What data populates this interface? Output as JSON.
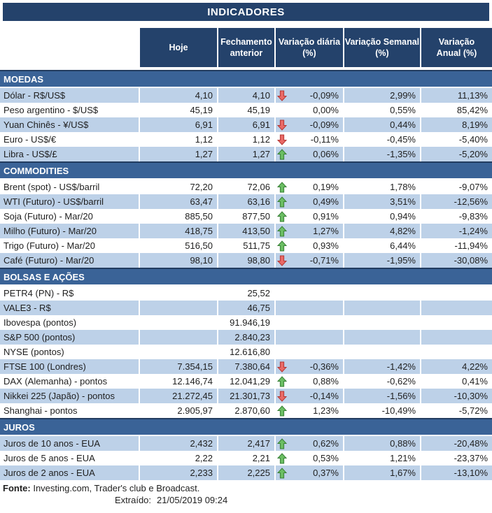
{
  "title": "INDICADORES",
  "columns": [
    "Hoje",
    "Fechamento\nanterior",
    "Variação diária\n(%)",
    "Variação Semanal\n(%)",
    "Variação\nAnual (%)"
  ],
  "colors": {
    "navy_header": "#24426B",
    "section_blue": "#3A6397",
    "row_light_blue": "#BDD1E8",
    "arrow_up_fill": "#6BBE63",
    "arrow_up_stroke": "#377F35",
    "arrow_down_fill": "#E96A66",
    "arrow_down_stroke": "#B43532"
  },
  "sections": [
    {
      "name": "MOEDAS",
      "rows": [
        {
          "label": "Dólar - R$/US$",
          "hoje": "4,10",
          "fechamento": "4,10",
          "arrow": "down",
          "diaria": "-0,09%",
          "semanal": "2,99%",
          "anual": "11,13%"
        },
        {
          "label": "Peso argentino - $/US$",
          "hoje": "45,19",
          "fechamento": "45,19",
          "arrow": "none",
          "diaria": "0,00%",
          "semanal": "0,55%",
          "anual": "85,42%"
        },
        {
          "label": "Yuan Chinês - ¥/US$",
          "hoje": "6,91",
          "fechamento": "6,91",
          "arrow": "down",
          "diaria": "-0,09%",
          "semanal": "0,44%",
          "anual": "8,19%"
        },
        {
          "label": "Euro - US$/€",
          "hoje": "1,12",
          "fechamento": "1,12",
          "arrow": "down",
          "diaria": "-0,11%",
          "semanal": "-0,45%",
          "anual": "-5,40%"
        },
        {
          "label": "Libra - US$/£",
          "hoje": "1,27",
          "fechamento": "1,27",
          "arrow": "up",
          "diaria": "0,06%",
          "semanal": "-1,35%",
          "anual": "-5,20%"
        }
      ]
    },
    {
      "name": "COMMODITIES",
      "rows": [
        {
          "label": "Brent (spot) - US$/barril",
          "hoje": "72,20",
          "fechamento": "72,06",
          "arrow": "up",
          "diaria": "0,19%",
          "semanal": "1,78%",
          "anual": "-9,07%"
        },
        {
          "label": "WTI (Futuro) - US$/barril",
          "hoje": "63,47",
          "fechamento": "63,16",
          "arrow": "up",
          "diaria": "0,49%",
          "semanal": "3,51%",
          "anual": "-12,56%"
        },
        {
          "label": "Soja (Futuro) - Mar/20",
          "hoje": "885,50",
          "fechamento": "877,50",
          "arrow": "up",
          "diaria": "0,91%",
          "semanal": "0,94%",
          "anual": "-9,83%"
        },
        {
          "label": "Milho (Futuro) - Mar/20",
          "hoje": "418,75",
          "fechamento": "413,50",
          "arrow": "up",
          "diaria": "1,27%",
          "semanal": "4,82%",
          "anual": "-1,24%"
        },
        {
          "label": "Trigo (Futuro) - Mar/20",
          "hoje": "516,50",
          "fechamento": "511,75",
          "arrow": "up",
          "diaria": "0,93%",
          "semanal": "6,44%",
          "anual": "-11,94%"
        },
        {
          "label": "Café (Futuro) - Mar/20",
          "hoje": "98,10",
          "fechamento": "98,80",
          "arrow": "down",
          "diaria": "-0,71%",
          "semanal": "-1,95%",
          "anual": "-30,08%"
        }
      ]
    },
    {
      "name": "BOLSAS E AÇÕES",
      "rows": [
        {
          "label": "PETR4 (PN) - R$",
          "hoje": "",
          "fechamento": "25,52",
          "arrow": "none",
          "diaria": "",
          "semanal": "",
          "anual": ""
        },
        {
          "label": "VALE3 - R$",
          "hoje": "",
          "fechamento": "46,75",
          "arrow": "none",
          "diaria": "",
          "semanal": "",
          "anual": ""
        },
        {
          "label": "Ibovespa (pontos)",
          "hoje": "",
          "fechamento": "91.946,19",
          "arrow": "none",
          "diaria": "",
          "semanal": "",
          "anual": ""
        },
        {
          "label": "S&P 500 (pontos)",
          "hoje": "",
          "fechamento": "2.840,23",
          "arrow": "none",
          "diaria": "",
          "semanal": "",
          "anual": ""
        },
        {
          "label": "NYSE (pontos)",
          "hoje": "",
          "fechamento": "12.616,80",
          "arrow": "none",
          "diaria": "",
          "semanal": "",
          "anual": ""
        },
        {
          "label": "FTSE 100 (Londres)",
          "hoje": "7.354,15",
          "fechamento": "7.380,64",
          "arrow": "down",
          "diaria": "-0,36%",
          "semanal": "-1,42%",
          "anual": "4,22%"
        },
        {
          "label": "DAX (Alemanha) - pontos",
          "hoje": "12.146,74",
          "fechamento": "12.041,29",
          "arrow": "up",
          "diaria": "0,88%",
          "semanal": "-0,62%",
          "anual": "0,41%"
        },
        {
          "label": "Nikkei 225 (Japão) - pontos",
          "hoje": "21.272,45",
          "fechamento": "21.301,73",
          "arrow": "down",
          "diaria": "-0,14%",
          "semanal": "-1,56%",
          "anual": "-10,30%"
        },
        {
          "label": "Shanghai - pontos",
          "hoje": "2.905,97",
          "fechamento": "2.870,60",
          "arrow": "up",
          "diaria": "1,23%",
          "semanal": "-10,49%",
          "anual": "-5,72%"
        }
      ]
    },
    {
      "name": "JUROS",
      "rows": [
        {
          "label": "Juros de 10 anos - EUA",
          "hoje": "2,432",
          "fechamento": "2,417",
          "arrow": "up",
          "diaria": "0,62%",
          "semanal": "0,88%",
          "anual": "-20,48%"
        },
        {
          "label": "Juros de 5 anos - EUA",
          "hoje": "2,22",
          "fechamento": "2,21",
          "arrow": "up",
          "diaria": "0,53%",
          "semanal": "1,21%",
          "anual": "-23,37%"
        },
        {
          "label": "Juros de 2 anos - EUA",
          "hoje": "2,233",
          "fechamento": "2,225",
          "arrow": "up",
          "diaria": "0,37%",
          "semanal": "1,67%",
          "anual": "-13,10%"
        }
      ]
    }
  ],
  "footer": {
    "fonte_label": "Fonte:",
    "fonte_text": " Investing.com, Trader's club e Broadcast.",
    "extraido_label": "Extraído:",
    "extraido_value": "21/05/2019 09:24"
  }
}
